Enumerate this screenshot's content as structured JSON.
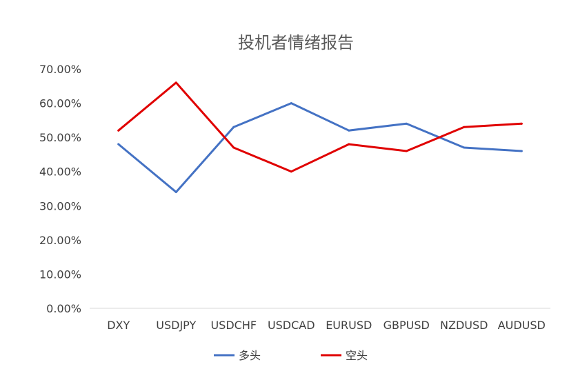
{
  "chart_data": {
    "type": "line",
    "title": "投机者情绪报告",
    "xlabel": "",
    "ylabel": "",
    "categories": [
      "DXY",
      "USDJPY",
      "USDCHF",
      "USDCAD",
      "EURUSD",
      "GBPUSD",
      "NZDUSD",
      "AUDUSD"
    ],
    "y_ticks": [
      "0.00%",
      "10.00%",
      "20.00%",
      "30.00%",
      "40.00%",
      "50.00%",
      "60.00%",
      "70.00%"
    ],
    "ylim": [
      0,
      70
    ],
    "grid": false,
    "legend_position": "bottom",
    "series": [
      {
        "name": "多头",
        "color": "#4472C4",
        "values": [
          48,
          34,
          53,
          60,
          52,
          54,
          47,
          46
        ]
      },
      {
        "name": "空头",
        "color": "#E00000",
        "values": [
          52,
          66,
          47,
          40,
          48,
          46,
          53,
          54
        ]
      }
    ]
  }
}
